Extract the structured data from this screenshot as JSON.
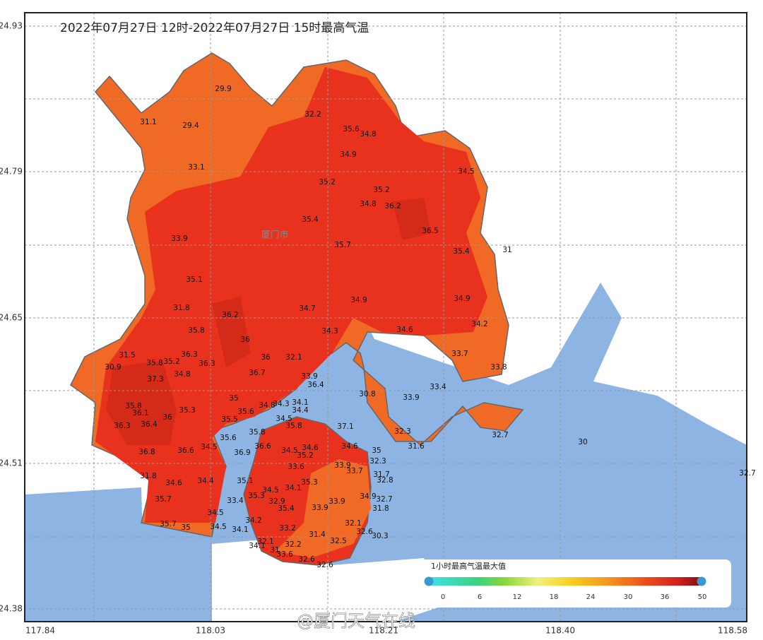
{
  "map": {
    "title": "2022年07月27日 12时-2022年07月27日 15时最高气温",
    "lat_ticks": [
      "24.93",
      "24.79",
      "24.65",
      "24.51",
      "24.38"
    ],
    "lon_ticks": [
      "117.84",
      "118.03",
      "118.21",
      "118.40",
      "118.58"
    ],
    "district": "厦门市",
    "stations": [
      29.9,
      31.1,
      29.4,
      32.2,
      35.6,
      34.8,
      34.9,
      33.1,
      34.5,
      35.2,
      35.2,
      34.8,
      36.2,
      35.4,
      36.5,
      33.9,
      35.7,
      35.4,
      31,
      35.1,
      34.9,
      34.9,
      31.8,
      36.2,
      34.7,
      34.2,
      35.8,
      34.3,
      34.6,
      36,
      31.5,
      36.3,
      36,
      32.1,
      33.7,
      30.9,
      35.8,
      35.2,
      36.3,
      34.8,
      36.7,
      33.9,
      33.8,
      37.3,
      36.4,
      33.4,
      30.8,
      33.9,
      35,
      34.8,
      34.3,
      34.1,
      35.8,
      36.1,
      35.3,
      35.6,
      34.4,
      36,
      35.5,
      34.5,
      36.3,
      36.4,
      35.8,
      37.1,
      35.8,
      32.3,
      32.7,
      35.6,
      30,
      36.6,
      34.5,
      34.6,
      36.8,
      36.6,
      34.5,
      36.9,
      34.6,
      35,
      31.6,
      35.2,
      32.3,
      33.6,
      33.9,
      33.7,
      31.7,
      32.7,
      31.8,
      34.6,
      34.4,
      35.1,
      35.3,
      34.1,
      34.5,
      32.8,
      35.3,
      34.9,
      32.7,
      35.7,
      33.4,
      32.9,
      35.4,
      33.9,
      33.9,
      31.8,
      34.5,
      34.2,
      32.1,
      35.7,
      35,
      34.5,
      34.1,
      33.2,
      32.6,
      31.4,
      30.3,
      32.5,
      32.1,
      34.1,
      32.2,
      31,
      33.6,
      32.6,
      32.6
    ],
    "legend": {
      "title": "1小时最高气温最大值",
      "ticks": [
        "0",
        "6",
        "12",
        "18",
        "24",
        "30",
        "36",
        "50"
      ]
    },
    "watermark": "@厦门天气在线"
  }
}
